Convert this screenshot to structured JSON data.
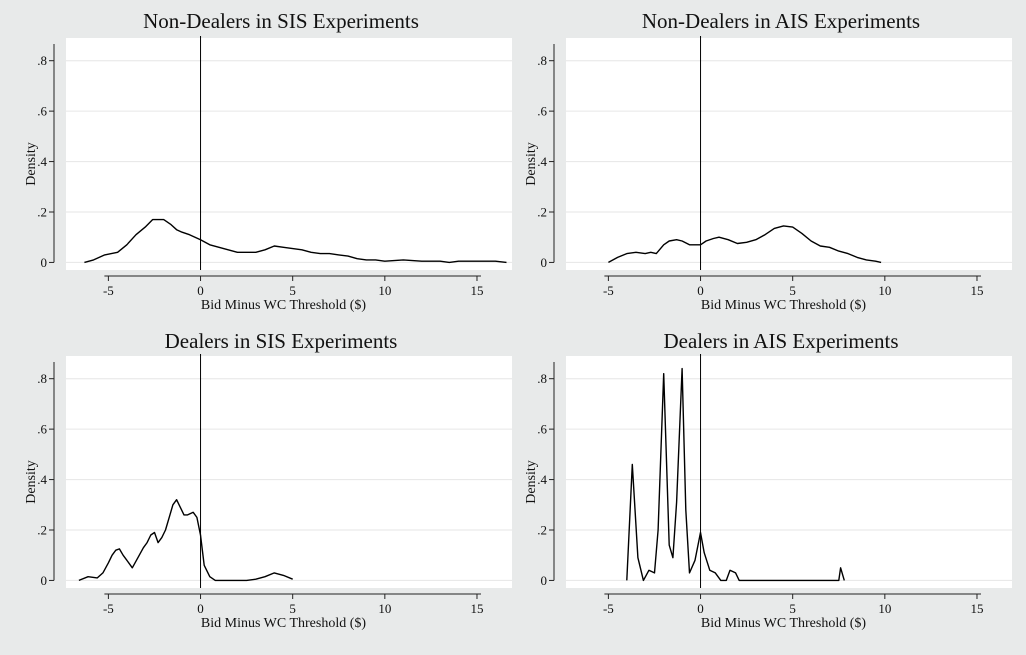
{
  "colors": {
    "background": "#e8eaea",
    "plot_background": "#ffffff",
    "line": "#000000",
    "grid": "#e6e6e6"
  },
  "chart_data": [
    {
      "type": "line",
      "title": "Non-Dealers in SIS Experiments",
      "xlabel": "Bid Minus WC Threshold ($)",
      "ylabel": "Density",
      "xlim": [
        -7.3,
        16.9
      ],
      "ylim": [
        -0.03,
        0.89
      ],
      "xticks": [
        -5,
        0,
        5,
        10,
        15
      ],
      "xtick_labels": [
        "-5",
        "0",
        "5",
        "10",
        "15"
      ],
      "yticks": [
        0,
        0.2,
        0.4,
        0.6,
        0.8
      ],
      "ytick_labels": [
        "0",
        ".2",
        ".4",
        ".6",
        ".8"
      ],
      "grid": true,
      "vertical_reference_line": 0,
      "series": [
        {
          "x": [
            -6.3,
            -5.8,
            -5.2,
            -4.5,
            -4.0,
            -3.5,
            -3.0,
            -2.6,
            -2.3,
            -2.0,
            -1.6,
            -1.3,
            -1.0,
            -0.6,
            -0.3,
            0.0,
            0.5,
            1.0,
            1.5,
            2.0,
            2.5,
            3.0,
            3.5,
            4.0,
            4.5,
            5.0,
            5.5,
            6.0,
            6.5,
            7.0,
            7.5,
            8.0,
            8.5,
            9.0,
            9.5,
            10.0,
            11.0,
            12.0,
            13.0,
            13.5,
            14.0,
            15.0,
            16.0,
            16.6
          ],
          "y": [
            0.0,
            0.01,
            0.03,
            0.04,
            0.07,
            0.11,
            0.14,
            0.17,
            0.17,
            0.17,
            0.15,
            0.13,
            0.12,
            0.11,
            0.1,
            0.09,
            0.07,
            0.06,
            0.05,
            0.04,
            0.04,
            0.04,
            0.05,
            0.065,
            0.06,
            0.055,
            0.05,
            0.04,
            0.035,
            0.035,
            0.03,
            0.025,
            0.015,
            0.01,
            0.01,
            0.005,
            0.01,
            0.005,
            0.005,
            0.0,
            0.005,
            0.005,
            0.005,
            0.0
          ]
        }
      ]
    },
    {
      "type": "line",
      "title": "Non-Dealers in AIS Experiments",
      "xlabel": "Bid Minus WC Threshold ($)",
      "ylabel": "Density",
      "xlim": [
        -7.3,
        16.9
      ],
      "ylim": [
        -0.03,
        0.89
      ],
      "xticks": [
        -5,
        0,
        5,
        10,
        15
      ],
      "xtick_labels": [
        "-5",
        "0",
        "5",
        "10",
        "15"
      ],
      "yticks": [
        0,
        0.2,
        0.4,
        0.6,
        0.8
      ],
      "ytick_labels": [
        "0",
        ".2",
        ".4",
        ".6",
        ".8"
      ],
      "grid": true,
      "vertical_reference_line": 0,
      "series": [
        {
          "x": [
            -5.0,
            -4.5,
            -4.0,
            -3.5,
            -3.0,
            -2.7,
            -2.4,
            -2.0,
            -1.7,
            -1.3,
            -1.0,
            -0.6,
            -0.3,
            0.0,
            0.3,
            0.7,
            1.0,
            1.5,
            2.0,
            2.5,
            3.0,
            3.5,
            4.0,
            4.5,
            5.0,
            5.5,
            6.0,
            6.5,
            7.0,
            7.5,
            8.0,
            8.5,
            9.0,
            9.5,
            9.8
          ],
          "y": [
            0.0,
            0.02,
            0.035,
            0.04,
            0.035,
            0.04,
            0.035,
            0.07,
            0.085,
            0.09,
            0.085,
            0.07,
            0.07,
            0.07,
            0.085,
            0.095,
            0.1,
            0.09,
            0.075,
            0.08,
            0.09,
            0.11,
            0.135,
            0.145,
            0.14,
            0.115,
            0.085,
            0.065,
            0.06,
            0.045,
            0.035,
            0.02,
            0.01,
            0.005,
            0.0
          ]
        }
      ]
    },
    {
      "type": "line",
      "title": "Dealers in SIS Experiments",
      "xlabel": "Bid Minus WC Threshold ($)",
      "ylabel": "Density",
      "xlim": [
        -7.3,
        16.9
      ],
      "ylim": [
        -0.03,
        0.89
      ],
      "xticks": [
        -5,
        0,
        5,
        10,
        15
      ],
      "xtick_labels": [
        "-5",
        "0",
        "5",
        "10",
        "15"
      ],
      "yticks": [
        0,
        0.2,
        0.4,
        0.6,
        0.8
      ],
      "ytick_labels": [
        "0",
        ".2",
        ".4",
        ".6",
        ".8"
      ],
      "grid": true,
      "vertical_reference_line": 0,
      "series": [
        {
          "x": [
            -6.6,
            -6.1,
            -5.6,
            -5.3,
            -5.0,
            -4.8,
            -4.6,
            -4.4,
            -4.2,
            -3.9,
            -3.7,
            -3.4,
            -3.1,
            -2.9,
            -2.7,
            -2.5,
            -2.3,
            -2.1,
            -1.9,
            -1.7,
            -1.5,
            -1.3,
            -1.1,
            -0.9,
            -0.7,
            -0.4,
            -0.2,
            0.0,
            0.2,
            0.5,
            0.8,
            1.5,
            2.5,
            3.0,
            3.5,
            4.0,
            4.5,
            5.0
          ],
          "y": [
            0.0,
            0.015,
            0.01,
            0.03,
            0.07,
            0.1,
            0.12,
            0.125,
            0.1,
            0.07,
            0.05,
            0.09,
            0.13,
            0.15,
            0.18,
            0.19,
            0.15,
            0.17,
            0.2,
            0.25,
            0.3,
            0.32,
            0.29,
            0.26,
            0.26,
            0.27,
            0.25,
            0.18,
            0.06,
            0.015,
            0.0,
            0.0,
            0.0,
            0.005,
            0.015,
            0.03,
            0.02,
            0.005
          ]
        }
      ]
    },
    {
      "type": "line",
      "title": "Dealers in AIS Experiments",
      "xlabel": "Bid Minus WC Threshold ($)",
      "ylabel": "Density",
      "xlim": [
        -7.3,
        16.9
      ],
      "ylim": [
        -0.03,
        0.89
      ],
      "xticks": [
        -5,
        0,
        5,
        10,
        15
      ],
      "xtick_labels": [
        "-5",
        "0",
        "5",
        "10",
        "15"
      ],
      "yticks": [
        0,
        0.2,
        0.4,
        0.6,
        0.8
      ],
      "ytick_labels": [
        "0",
        ".2",
        ".4",
        ".6",
        ".8"
      ],
      "grid": true,
      "vertical_reference_line": 0,
      "series": [
        {
          "x": [
            -4.0,
            -3.7,
            -3.4,
            -3.1,
            -2.8,
            -2.5,
            -2.3,
            -2.0,
            -1.7,
            -1.5,
            -1.3,
            -1.0,
            -0.8,
            -0.6,
            -0.3,
            0.0,
            0.2,
            0.5,
            0.8,
            1.1,
            1.4,
            1.6,
            1.9,
            2.1,
            3.0,
            4.0,
            5.0,
            6.0,
            7.0,
            7.5,
            7.6,
            7.8
          ],
          "y": [
            0.0,
            0.46,
            0.09,
            0.0,
            0.04,
            0.03,
            0.2,
            0.82,
            0.14,
            0.09,
            0.31,
            0.84,
            0.28,
            0.03,
            0.08,
            0.19,
            0.11,
            0.04,
            0.03,
            0.0,
            0.0,
            0.04,
            0.03,
            0.0,
            0.0,
            0.0,
            0.0,
            0.0,
            0.0,
            0.0,
            0.05,
            0.0
          ]
        }
      ]
    }
  ]
}
